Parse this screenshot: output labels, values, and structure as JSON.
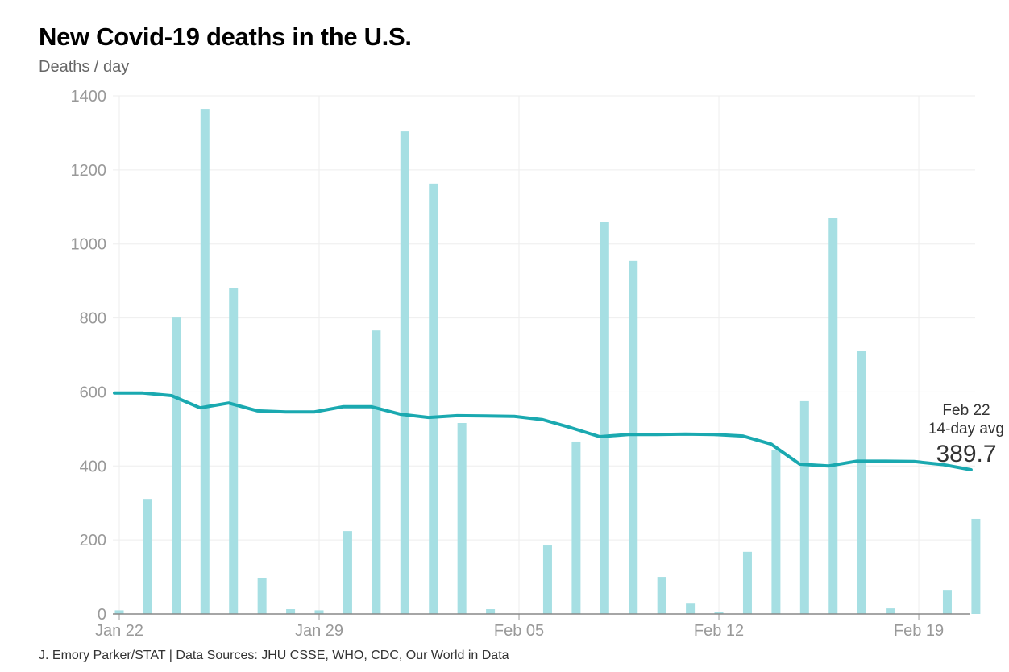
{
  "chart_data": {
    "type": "bar",
    "title": "New Covid-19 deaths in the U.S.",
    "subtitle": "Deaths / day",
    "source": "J. Emory Parker/STAT | Data Sources: JHU CSSE, WHO, CDC, Our World in Data",
    "categories": [
      "Jan 22",
      "Jan 23",
      "Jan 24",
      "Jan 25",
      "Jan 26",
      "Jan 27",
      "Jan 28",
      "Jan 29",
      "Jan 30",
      "Jan 31",
      "Feb 01",
      "Feb 02",
      "Feb 03",
      "Feb 04",
      "Feb 05",
      "Feb 06",
      "Feb 07",
      "Feb 08",
      "Feb 09",
      "Feb 10",
      "Feb 11",
      "Feb 12",
      "Feb 13",
      "Feb 14",
      "Feb 15",
      "Feb 16",
      "Feb 17",
      "Feb 18",
      "Feb 19",
      "Feb 20",
      "Feb 21"
    ],
    "series": [
      {
        "type": "bar",
        "values": [
          10,
          311,
          801,
          1365,
          880,
          98,
          13,
          10,
          224,
          766,
          1304,
          1163,
          516,
          13,
          0,
          185,
          466,
          1060,
          954,
          100,
          30,
          6,
          168,
          444,
          575,
          1071,
          710,
          15,
          0,
          65,
          257
        ],
        "color": "#a6dfe3"
      },
      {
        "type": "line",
        "values": [
          597,
          597,
          590,
          557,
          570,
          549,
          546,
          546,
          560,
          560,
          540,
          531,
          536,
          535,
          534,
          525,
          503,
          479,
          485,
          485,
          486,
          485,
          481,
          459,
          405,
          400,
          413,
          413,
          412,
          404,
          389.7
        ],
        "color": "#1aa9b0"
      }
    ],
    "x_ticks": [
      "Jan 22",
      "Jan 29",
      "Feb 05",
      "Feb 12",
      "Feb 19"
    ],
    "y_ticks": [
      0,
      200,
      400,
      600,
      800,
      1000,
      1200,
      1400
    ],
    "ylim": [
      0,
      1400
    ],
    "grid": true,
    "annotation": {
      "date": "Feb 22",
      "label": "14-day avg",
      "value": "389.7"
    }
  }
}
